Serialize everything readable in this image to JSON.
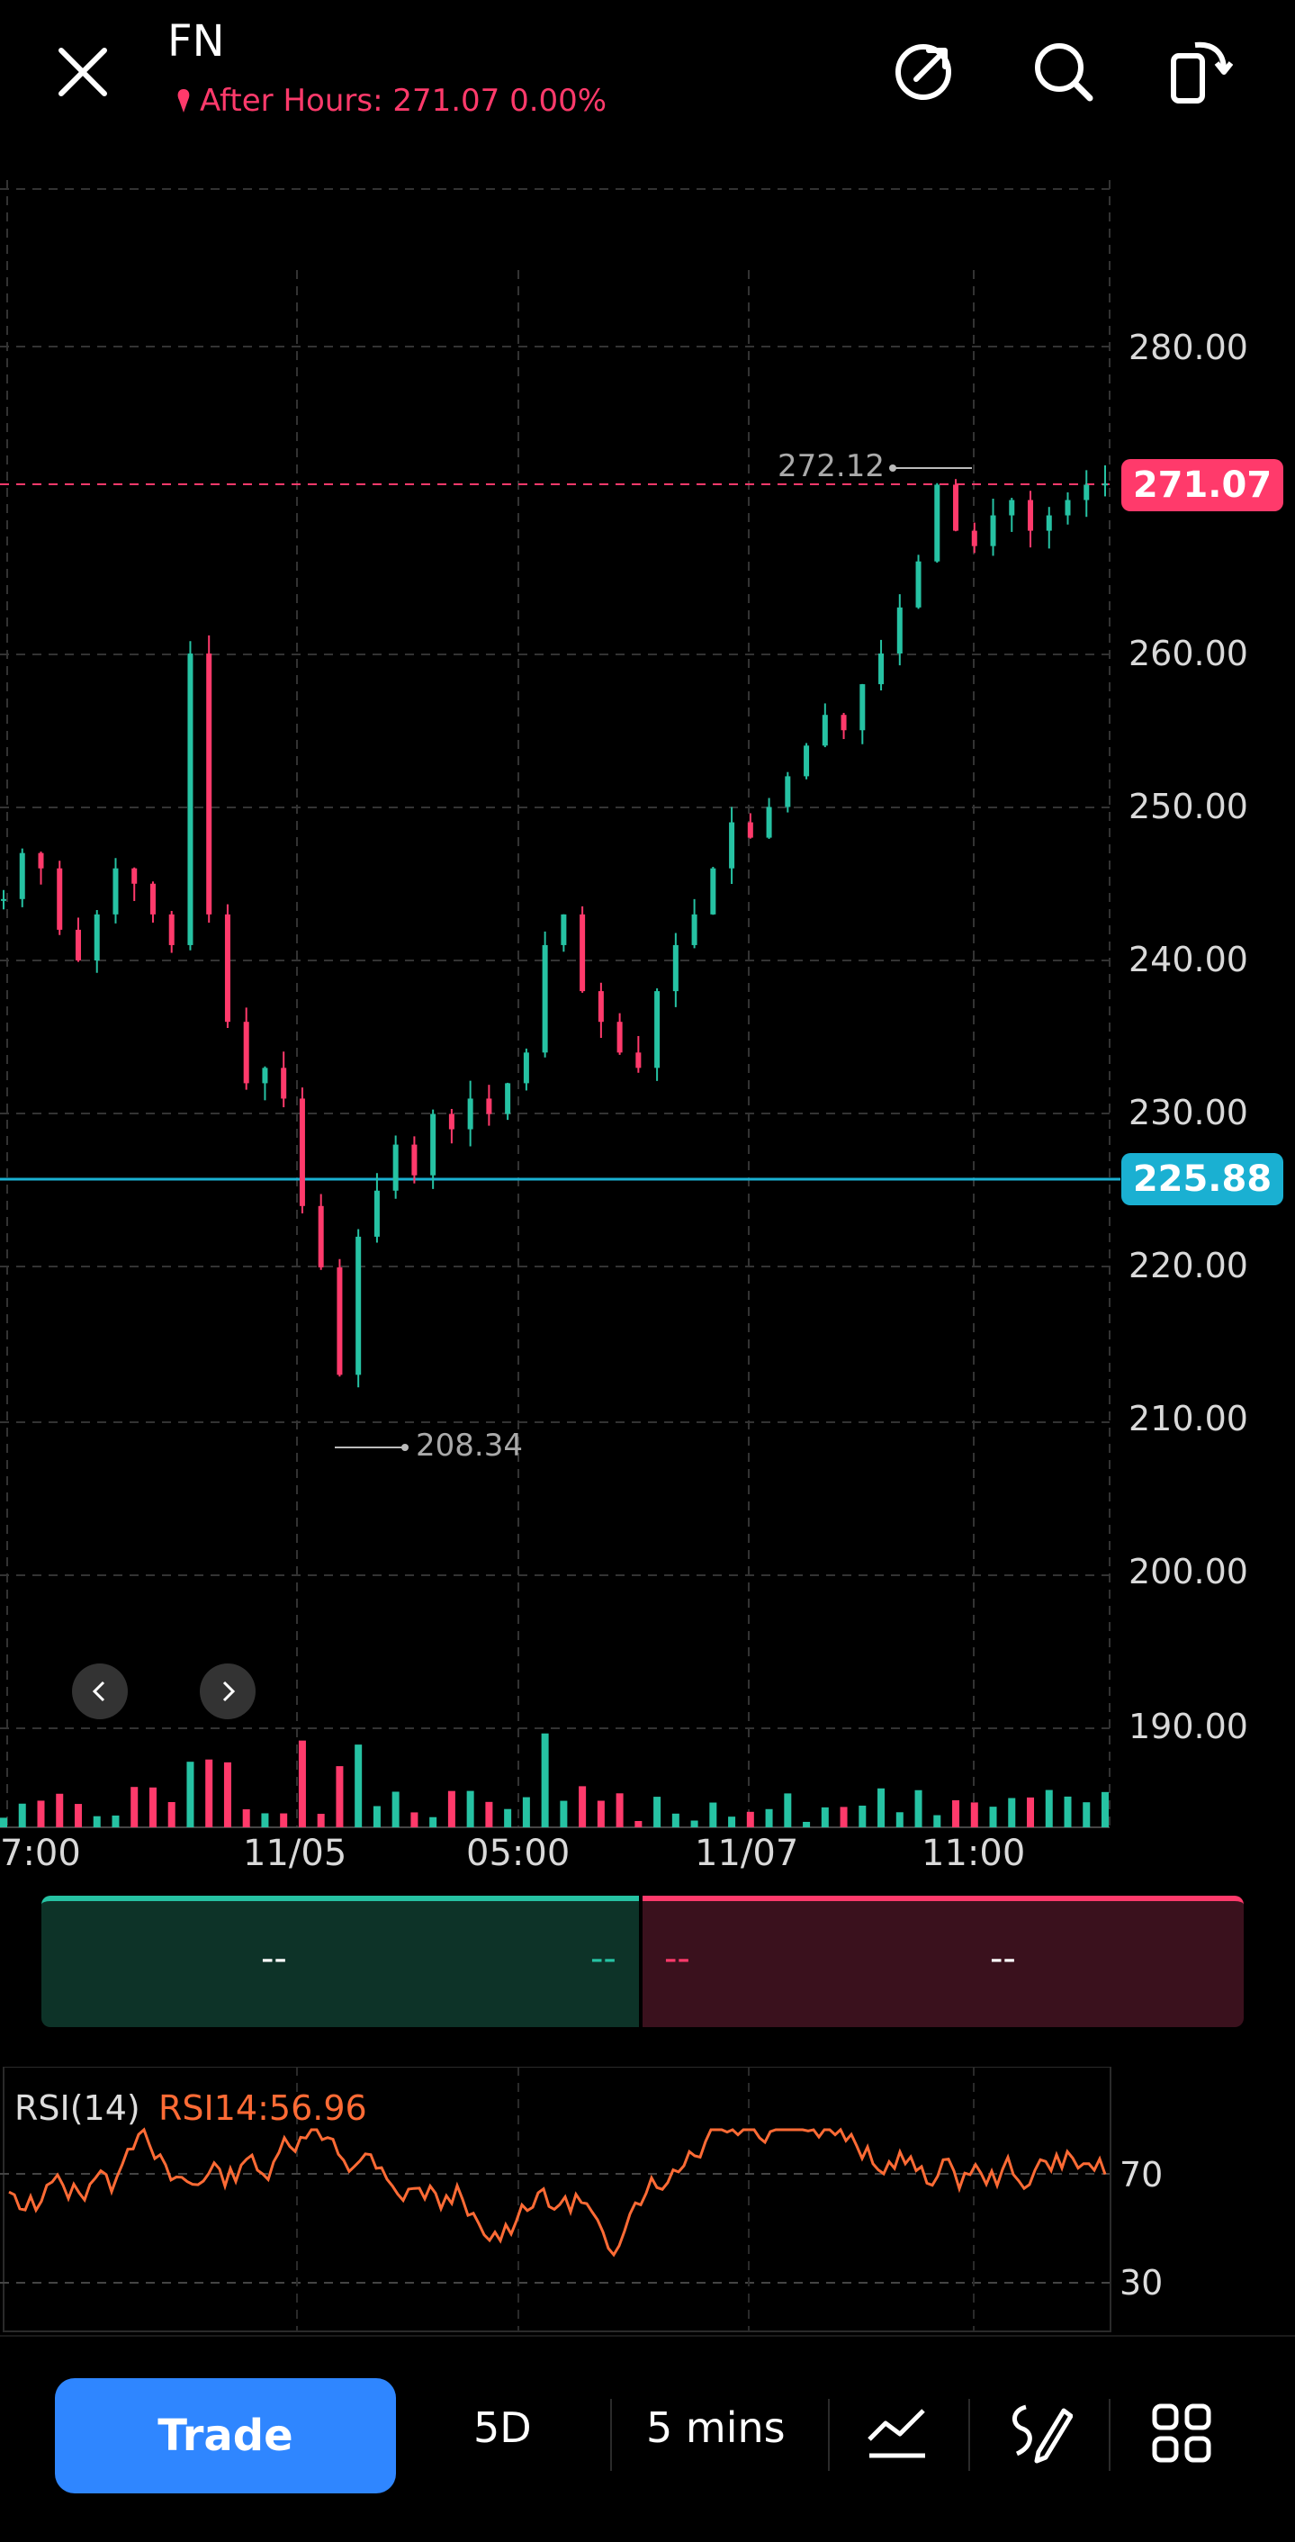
{
  "header": {
    "ticker": "FN",
    "after_hours": "After Hours: 271.07 0.00%",
    "icons": [
      "close-icon",
      "share-icon",
      "search-icon",
      "rotate-icon"
    ]
  },
  "chart_data": {
    "type": "candlestick",
    "price_axis": [
      "280.00",
      "260.00",
      "250.00",
      "240.00",
      "230.00",
      "220.00",
      "210.00",
      "200.00",
      "190.00"
    ],
    "current_price_label": "271.07",
    "marker_price_label": "225.88",
    "high_label": "272.12",
    "low_label": "208.34",
    "time_axis": [
      "7:00",
      "11/05",
      "05:00",
      "11/07",
      "11:00"
    ],
    "close_series": [
      244,
      247,
      246,
      242,
      240,
      243,
      246,
      245,
      243,
      241,
      260,
      243,
      236,
      232,
      233,
      231,
      224,
      220,
      213,
      222,
      225,
      228,
      226,
      230,
      229,
      231,
      230,
      232,
      234,
      241,
      243,
      238,
      236,
      234,
      233,
      238,
      241,
      243,
      246,
      249,
      248,
      250,
      252,
      254,
      256,
      255,
      258,
      260,
      263,
      266,
      271,
      268,
      267,
      269,
      270,
      268,
      269,
      270,
      271,
      271.07
    ],
    "colors": {
      "up": "#26c2a3",
      "down": "#ff3a6b",
      "marker": "#1ab0d2",
      "rsi": "#ff6b35"
    }
  },
  "order_book": {
    "bid_value": "--",
    "bid_pct": "--",
    "ask_pct": "--",
    "ask_value": "--"
  },
  "rsi": {
    "title": "RSI(14)",
    "value": "RSI14:56.96",
    "levels": [
      "70",
      "30"
    ]
  },
  "bottom_bar": {
    "trade": "Trade",
    "period": "5D",
    "interval": "5 mins",
    "icons": [
      "indicator-icon",
      "draw-icon",
      "grid-icon"
    ]
  }
}
